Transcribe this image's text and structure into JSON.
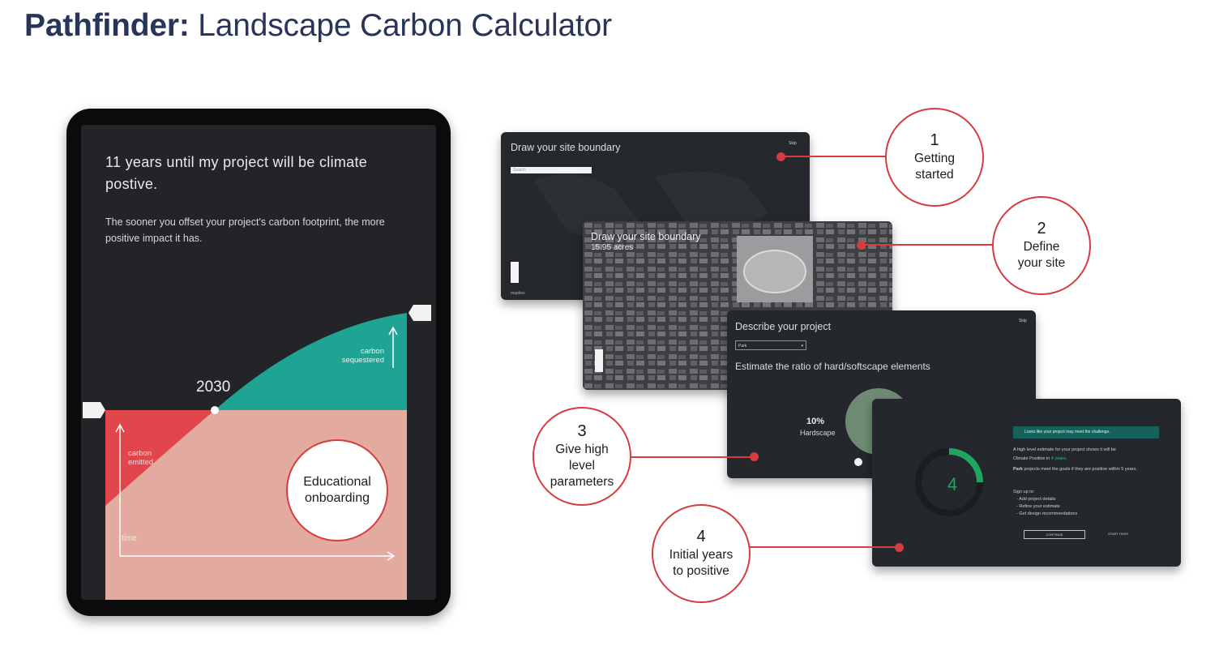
{
  "title": {
    "bold": "Pathfinder:",
    "rest": " Landscape Carbon Calculator"
  },
  "tablet": {
    "heading": "11 years until my project will be climate postive.",
    "subtext": "The sooner you offset your project's carbon footprint, the more positive impact it has.",
    "year_label": "2030",
    "sequestered_label": "carbon sequestered",
    "emitted_label": "carbon emitted",
    "time_label": "time",
    "badge": "Educational onboarding"
  },
  "screens": {
    "s1": {
      "title": "Draw your site boundary",
      "search_placeholder": "Search",
      "skip": "Skip",
      "map_logo": "mapbox"
    },
    "s2": {
      "title": "Draw your site boundary",
      "acres": "15.95 acres"
    },
    "s3": {
      "title": "Describe your project",
      "dropdown_value": "Park",
      "subtitle": "Estimate the ratio of hard/softscape elements",
      "percent": "10%",
      "percent_label": "Hardscape",
      "skip": "Skip"
    },
    "s4": {
      "banner": "Looks like your project may meet the challenge.",
      "estimate_line1": "A high level estimate for your project shows it will be",
      "estimate_line2_prefix": "Climate Positive in ",
      "estimate_years": "4 years.",
      "park_bold": "Park",
      "park_rest": " projects meet the goals if they are positive within 5 years.",
      "signup": "Sign up to:",
      "bullets": [
        "Add project details",
        "Refine your estimate",
        "Get design recommendations"
      ],
      "years_number": "4",
      "continue_label": "CONTINUE",
      "start_over_label": "START OVER"
    }
  },
  "callouts": [
    {
      "number": "1",
      "label": "Getting started"
    },
    {
      "number": "2",
      "label": "Define your site"
    },
    {
      "number": "3",
      "label": "Give high level parameters"
    },
    {
      "number": "4",
      "label": "Initial years to positive"
    }
  ],
  "colors": {
    "accent": "#d63b3f",
    "teal": "#1fa393",
    "emitted": "#e0464c",
    "pink": "#e3aba0",
    "dark": "#24272b",
    "title": "#263558"
  }
}
